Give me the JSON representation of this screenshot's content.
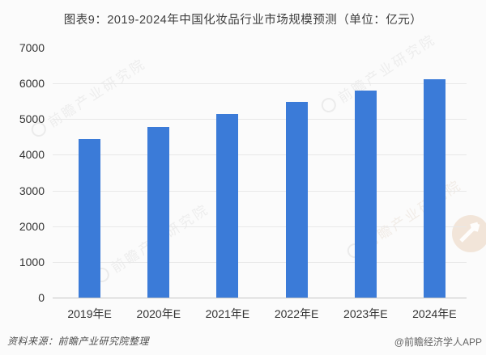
{
  "header": {
    "title": "图表9：2019-2024年中国化妆品行业市场规模预测（单位：亿元）"
  },
  "chart_data": {
    "type": "bar",
    "title": "2019-2024年中国化妆品行业市场规模预测",
    "unit": "亿元",
    "categories": [
      "2019年E",
      "2020年E",
      "2021年E",
      "2022年E",
      "2023年E",
      "2024年E"
    ],
    "values": [
      4450,
      4790,
      5150,
      5480,
      5800,
      6120
    ],
    "xlabel": "",
    "ylabel": "",
    "ylim": [
      0,
      7000
    ],
    "yticks": [
      0,
      1000,
      2000,
      3000,
      4000,
      5000,
      6000,
      7000
    ],
    "grid": "horizontal",
    "legend": "none",
    "bar_color": "#3b7bd8"
  },
  "watermark": {
    "text": "前瞻产业研究院",
    "logo": "qianzhan-circle-arrow"
  },
  "footer": {
    "source": "资料来源：前瞻产业研究院整理",
    "credit": "@前瞻经济学人APP"
  },
  "colors": {
    "bar": "#3b7bd8",
    "grid": "#e8e8e8",
    "axis": "#c6c6c6",
    "tick_text": "#333333",
    "title_text": "#3d3d3d",
    "background": "#fbfbfb",
    "watermark_logo": "#d9a878"
  }
}
